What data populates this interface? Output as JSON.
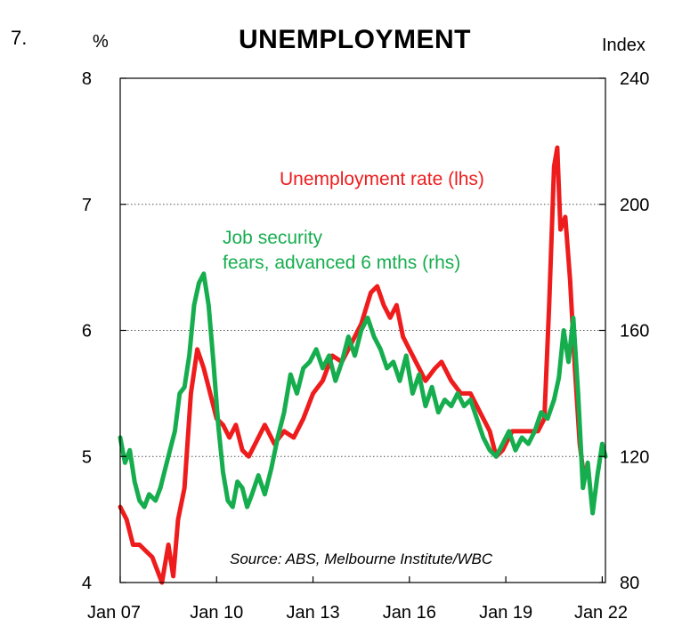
{
  "figure_number": "7.",
  "chart_data": {
    "type": "line",
    "title": "UNEMPLOYMENT",
    "left_axis": {
      "unit": "%",
      "range": [
        4,
        8
      ],
      "ticks": [
        "4",
        "5",
        "6",
        "7",
        "8"
      ]
    },
    "right_axis": {
      "unit": "Index",
      "range": [
        80,
        240
      ],
      "ticks": [
        "80",
        "120",
        "160",
        "200",
        "240"
      ]
    },
    "x_range": [
      2007.0,
      2022.1
    ],
    "x_ticks": [
      {
        "label": "Jan 07",
        "x": 2007
      },
      {
        "label": "Jan 10",
        "x": 2010
      },
      {
        "label": "Jan 13",
        "x": 2013
      },
      {
        "label": "Jan 16",
        "x": 2016
      },
      {
        "label": "Jan 19",
        "x": 2019
      },
      {
        "label": "Jan 22",
        "x": 2022
      }
    ],
    "grid": "horizontal dotted",
    "colors": {
      "unemployment": "#ee1c1c",
      "job_security": "#16ad4e"
    },
    "series": [
      {
        "name": "Unemployment rate (lhs)",
        "axis": "left",
        "color": "#ee1c1c",
        "points": [
          [
            2007.0,
            4.6
          ],
          [
            2007.2,
            4.5
          ],
          [
            2007.4,
            4.3
          ],
          [
            2007.6,
            4.3
          ],
          [
            2007.8,
            4.25
          ],
          [
            2008.0,
            4.2
          ],
          [
            2008.15,
            4.1
          ],
          [
            2008.3,
            4.0
          ],
          [
            2008.5,
            4.3
          ],
          [
            2008.65,
            4.05
          ],
          [
            2008.8,
            4.5
          ],
          [
            2009.0,
            4.75
          ],
          [
            2009.2,
            5.5
          ],
          [
            2009.4,
            5.85
          ],
          [
            2009.6,
            5.7
          ],
          [
            2009.8,
            5.5
          ],
          [
            2010.0,
            5.3
          ],
          [
            2010.2,
            5.25
          ],
          [
            2010.4,
            5.15
          ],
          [
            2010.6,
            5.25
          ],
          [
            2010.8,
            5.05
          ],
          [
            2011.0,
            5.0
          ],
          [
            2011.2,
            5.1
          ],
          [
            2011.5,
            5.25
          ],
          [
            2011.8,
            5.1
          ],
          [
            2012.1,
            5.2
          ],
          [
            2012.4,
            5.15
          ],
          [
            2012.7,
            5.3
          ],
          [
            2013.0,
            5.5
          ],
          [
            2013.3,
            5.6
          ],
          [
            2013.6,
            5.8
          ],
          [
            2013.9,
            5.75
          ],
          [
            2014.2,
            5.9
          ],
          [
            2014.5,
            6.05
          ],
          [
            2014.8,
            6.3
          ],
          [
            2015.0,
            6.35
          ],
          [
            2015.2,
            6.2
          ],
          [
            2015.4,
            6.1
          ],
          [
            2015.6,
            6.2
          ],
          [
            2015.8,
            5.95
          ],
          [
            2016.0,
            5.85
          ],
          [
            2016.3,
            5.7
          ],
          [
            2016.5,
            5.6
          ],
          [
            2016.8,
            5.7
          ],
          [
            2017.0,
            5.75
          ],
          [
            2017.3,
            5.6
          ],
          [
            2017.6,
            5.5
          ],
          [
            2017.9,
            5.5
          ],
          [
            2018.2,
            5.35
          ],
          [
            2018.5,
            5.2
          ],
          [
            2018.7,
            5.0
          ],
          [
            2018.9,
            5.05
          ],
          [
            2019.2,
            5.2
          ],
          [
            2019.5,
            5.2
          ],
          [
            2019.8,
            5.2
          ],
          [
            2020.0,
            5.2
          ],
          [
            2020.2,
            5.3
          ],
          [
            2020.35,
            6.2
          ],
          [
            2020.5,
            7.3
          ],
          [
            2020.6,
            7.45
          ],
          [
            2020.7,
            6.8
          ],
          [
            2020.85,
            6.9
          ],
          [
            2021.0,
            6.4
          ],
          [
            2021.15,
            5.7
          ],
          [
            2021.3,
            5.1
          ],
          [
            2021.4,
            4.9
          ]
        ]
      },
      {
        "name": "Job security fears, advanced 6 mths (rhs)",
        "axis": "right",
        "color": "#16ad4e",
        "points": [
          [
            2007.0,
            126
          ],
          [
            2007.15,
            118
          ],
          [
            2007.3,
            122
          ],
          [
            2007.45,
            112
          ],
          [
            2007.6,
            106
          ],
          [
            2007.75,
            104
          ],
          [
            2007.9,
            108
          ],
          [
            2008.1,
            106
          ],
          [
            2008.25,
            110
          ],
          [
            2008.4,
            116
          ],
          [
            2008.55,
            122
          ],
          [
            2008.7,
            128
          ],
          [
            2008.85,
            140
          ],
          [
            2009.0,
            142
          ],
          [
            2009.15,
            152
          ],
          [
            2009.3,
            168
          ],
          [
            2009.45,
            175
          ],
          [
            2009.6,
            178
          ],
          [
            2009.75,
            168
          ],
          [
            2009.9,
            150
          ],
          [
            2010.05,
            130
          ],
          [
            2010.2,
            115
          ],
          [
            2010.35,
            106
          ],
          [
            2010.5,
            104
          ],
          [
            2010.65,
            112
          ],
          [
            2010.8,
            110
          ],
          [
            2010.95,
            104
          ],
          [
            2011.1,
            108
          ],
          [
            2011.3,
            114
          ],
          [
            2011.5,
            108
          ],
          [
            2011.7,
            116
          ],
          [
            2011.9,
            126
          ],
          [
            2012.1,
            134
          ],
          [
            2012.3,
            146
          ],
          [
            2012.5,
            140
          ],
          [
            2012.7,
            148
          ],
          [
            2012.9,
            150
          ],
          [
            2013.1,
            154
          ],
          [
            2013.3,
            148
          ],
          [
            2013.5,
            152
          ],
          [
            2013.7,
            144
          ],
          [
            2013.9,
            150
          ],
          [
            2014.1,
            158
          ],
          [
            2014.3,
            152
          ],
          [
            2014.5,
            160
          ],
          [
            2014.7,
            164
          ],
          [
            2014.9,
            158
          ],
          [
            2015.1,
            154
          ],
          [
            2015.3,
            148
          ],
          [
            2015.5,
            150
          ],
          [
            2015.7,
            144
          ],
          [
            2015.9,
            152
          ],
          [
            2016.1,
            140
          ],
          [
            2016.3,
            146
          ],
          [
            2016.5,
            136
          ],
          [
            2016.7,
            142
          ],
          [
            2016.9,
            134
          ],
          [
            2017.1,
            138
          ],
          [
            2017.3,
            136
          ],
          [
            2017.5,
            140
          ],
          [
            2017.7,
            136
          ],
          [
            2017.9,
            138
          ],
          [
            2018.1,
            132
          ],
          [
            2018.3,
            126
          ],
          [
            2018.5,
            122
          ],
          [
            2018.7,
            120
          ],
          [
            2018.9,
            124
          ],
          [
            2019.1,
            128
          ],
          [
            2019.3,
            122
          ],
          [
            2019.5,
            126
          ],
          [
            2019.7,
            124
          ],
          [
            2019.9,
            128
          ],
          [
            2020.1,
            134
          ],
          [
            2020.3,
            132
          ],
          [
            2020.5,
            138
          ],
          [
            2020.65,
            145
          ],
          [
            2020.8,
            160
          ],
          [
            2020.95,
            150
          ],
          [
            2021.1,
            164
          ],
          [
            2021.25,
            140
          ],
          [
            2021.4,
            110
          ],
          [
            2021.55,
            118
          ],
          [
            2021.7,
            102
          ],
          [
            2021.85,
            114
          ],
          [
            2022.0,
            124
          ],
          [
            2022.1,
            120
          ]
        ]
      }
    ],
    "annotations": {
      "unemployment_label": "Unemployment rate (lhs)",
      "job_security_label_line1": "Job security",
      "job_security_label_line2": "fears, advanced 6 mths (rhs)",
      "source": "Source: ABS, Melbourne Institute/WBC"
    }
  }
}
